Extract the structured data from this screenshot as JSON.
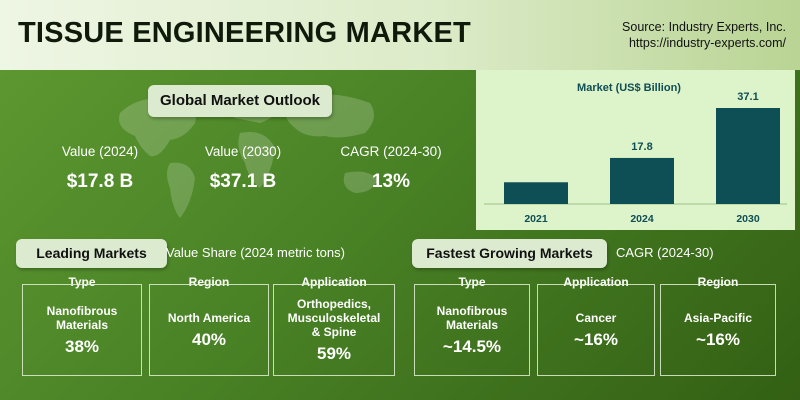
{
  "header": {
    "title": "TISSUE ENGINEERING MARKET",
    "source_line1": "Source: Industry Experts, Inc.",
    "source_line2": "https://industry-experts.com/"
  },
  "outlook": {
    "heading": "Global Market Outlook",
    "kpis": [
      {
        "label": "Value (2024)",
        "value": "$17.8 B"
      },
      {
        "label": "Value (2030)",
        "value": "$37.1 B"
      },
      {
        "label": "CAGR (2024-30)",
        "value": "13%"
      }
    ]
  },
  "chart_data": {
    "type": "bar",
    "title": "Market (US$ Billion)",
    "categories": [
      "2021",
      "2024",
      "2030"
    ],
    "values": [
      null,
      17.8,
      37.1
    ],
    "value_labels": [
      "",
      "17.8",
      "37.1"
    ],
    "bar_color": "#0e4e55",
    "background": "#ddf3c9",
    "ylim": [
      0,
      37.1
    ]
  },
  "leading": {
    "heading": "Leading Markets",
    "note": "Value Share (2024  metric tons)",
    "columns": [
      {
        "head": "Type",
        "label": "Nanofibrous\nMaterials",
        "value": "38%"
      },
      {
        "head": "Region",
        "label": "North America",
        "value": "40%"
      },
      {
        "head": "Application",
        "label": "Orthopedics,\nMusculoskeletal\n& Spine",
        "value": "59%"
      }
    ]
  },
  "fastest": {
    "heading": "Fastest Growing Markets",
    "note": "CAGR (2024-30)",
    "columns": [
      {
        "head": "Type",
        "label": "Nanofibrous\nMaterials",
        "value": "~14.5%"
      },
      {
        "head": "Application",
        "label": "Cancer",
        "value": "~16%"
      },
      {
        "head": "Region",
        "label": "Asia-Pacific",
        "value": "~16%"
      }
    ]
  },
  "colors": {
    "header_bg": "#e6f1da",
    "panel_bg": "#4a8326",
    "pill_bg": "#dcebcf",
    "bar": "#0e4e55"
  },
  "icons": {
    "background": "world-map-icon"
  }
}
